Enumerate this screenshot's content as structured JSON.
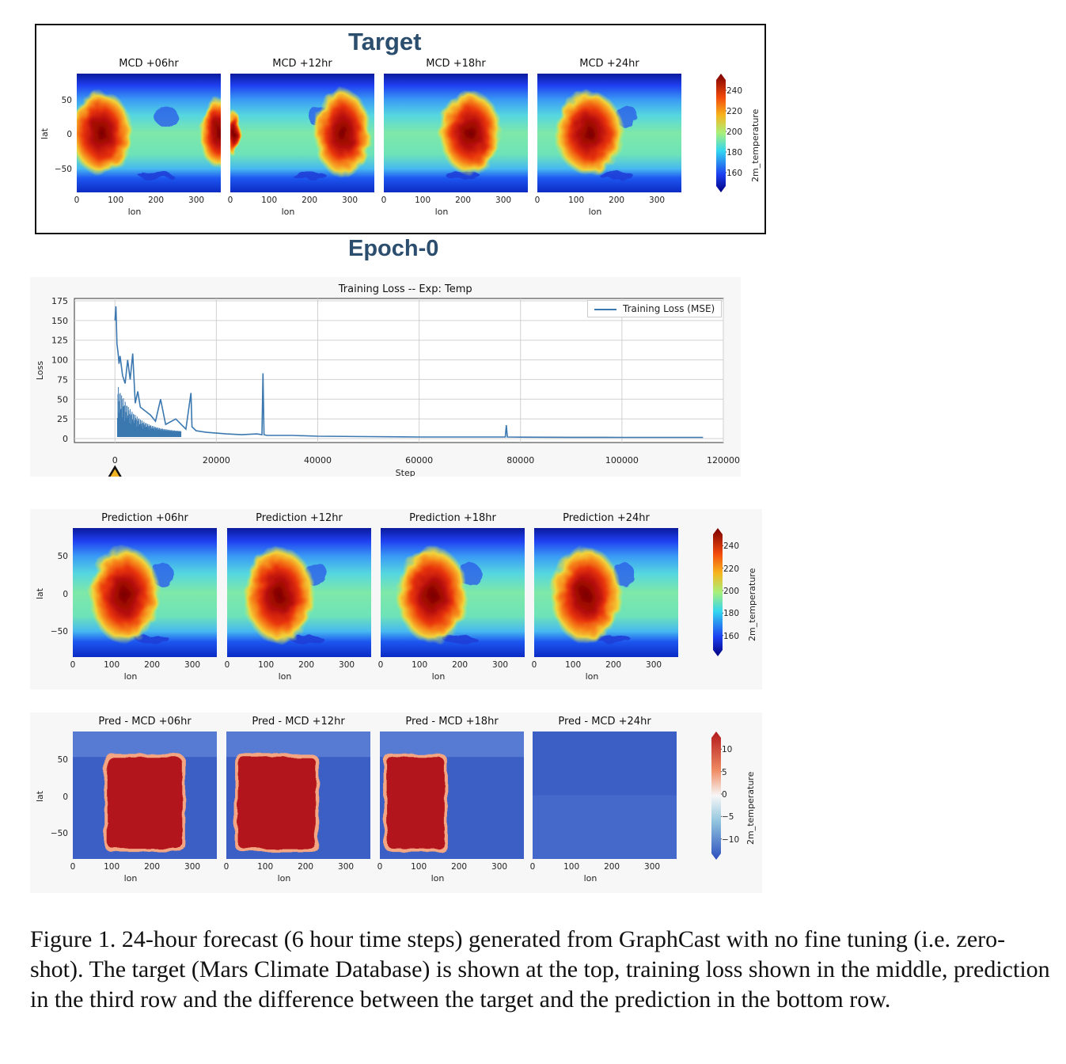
{
  "header": {
    "target_title": "Target",
    "epoch_title": "Epoch-0"
  },
  "target_row": {
    "panels": [
      {
        "title": "MCD +06hr",
        "variant": "a"
      },
      {
        "title": "MCD +12hr",
        "variant": "b"
      },
      {
        "title": "MCD +18hr",
        "variant": "c"
      },
      {
        "title": "MCD +24hr",
        "variant": "d"
      }
    ],
    "ylabel": "lat",
    "xlabel": "lon",
    "yticks": [
      "50",
      "0",
      "−50"
    ],
    "xticks": [
      "0",
      "100",
      "200",
      "300"
    ],
    "colorbar": {
      "label": "2m_temperature",
      "ticks": [
        "240",
        "220",
        "200",
        "180",
        "160"
      ]
    }
  },
  "prediction_row": {
    "panels": [
      {
        "title": "Prediction +06hr"
      },
      {
        "title": "Prediction +12hr"
      },
      {
        "title": "Prediction +18hr"
      },
      {
        "title": "Prediction +24hr"
      }
    ],
    "ylabel": "lat",
    "xlabel": "lon",
    "yticks": [
      "50",
      "0",
      "−50"
    ],
    "xticks": [
      "0",
      "100",
      "200",
      "300"
    ],
    "colorbar": {
      "label": "2m_temperature",
      "ticks": [
        "240",
        "220",
        "200",
        "180",
        "160"
      ]
    }
  },
  "difference_row": {
    "panels": [
      {
        "title": "Pred - MCD +06hr"
      },
      {
        "title": "Pred - MCD +12hr"
      },
      {
        "title": "Pred - MCD +18hr"
      },
      {
        "title": "Pred - MCD +24hr"
      }
    ],
    "ylabel": "lat",
    "xlabel": "lon",
    "yticks": [
      "50",
      "0",
      "−50"
    ],
    "xticks": [
      "0",
      "100",
      "200",
      "300"
    ],
    "colorbar": {
      "label": "2m_temperature",
      "ticks": [
        "10",
        "5",
        "0",
        "−5",
        "−10"
      ]
    }
  },
  "colors": {
    "title_blue": "#2c4e6e",
    "loss_line": "#3b78b0",
    "marker_fill": "#f0b323",
    "diff_red": "#b2181b",
    "diff_blue": "#3b5fc4"
  },
  "chart_data": {
    "type": "line",
    "title": "Training Loss -- Exp: Temp",
    "xlabel": "Step",
    "ylabel": "Loss",
    "xlim": [
      -8000,
      120000
    ],
    "ylim": [
      -5,
      178
    ],
    "xticks": [
      0,
      20000,
      40000,
      60000,
      80000,
      100000,
      120000
    ],
    "xtick_labels": [
      "0",
      "20000",
      "40000",
      "60000",
      "80000",
      "100000",
      "120000"
    ],
    "yticks": [
      0,
      25,
      50,
      75,
      100,
      125,
      150,
      175
    ],
    "ytick_labels": [
      "0",
      "25",
      "50",
      "75",
      "100",
      "125",
      "150",
      "175"
    ],
    "grid": true,
    "legend_position": "top-right",
    "series": [
      {
        "name": "Training Loss (MSE)",
        "x": [
          0,
          200,
          400,
          600,
          800,
          1000,
          1500,
          2000,
          2500,
          3000,
          3500,
          4000,
          4500,
          5000,
          6000,
          7000,
          8000,
          9000,
          10000,
          12000,
          14000,
          15000,
          15200,
          16000,
          18000,
          20000,
          22000,
          25000,
          28000,
          29000,
          29200,
          29400,
          30000,
          35000,
          40000,
          50000,
          60000,
          70000,
          77000,
          77200,
          77400,
          80000,
          90000,
          100000,
          110000,
          116000
        ],
        "y": [
          150,
          168,
          120,
          110,
          95,
          105,
          80,
          70,
          100,
          75,
          108,
          45,
          60,
          40,
          35,
          30,
          22,
          50,
          18,
          25,
          12,
          58,
          15,
          10,
          8,
          7,
          6,
          5,
          6,
          5,
          83,
          5,
          4,
          4,
          3,
          2.5,
          2,
          2,
          2,
          17,
          2,
          1.8,
          1.6,
          1.5,
          1.5,
          1.5
        ]
      }
    ],
    "marker": {
      "x": 0,
      "shape": "triangle"
    }
  },
  "caption": {
    "text": "Figure 1. 24-hour forecast (6 hour time steps) generated from GraphCast with no fine tuning (i.e. zero-shot). The target (Mars Climate Database) is shown at the top, training loss shown in the middle, prediction in the third row and the difference between the target and the prediction in the bottom row."
  }
}
